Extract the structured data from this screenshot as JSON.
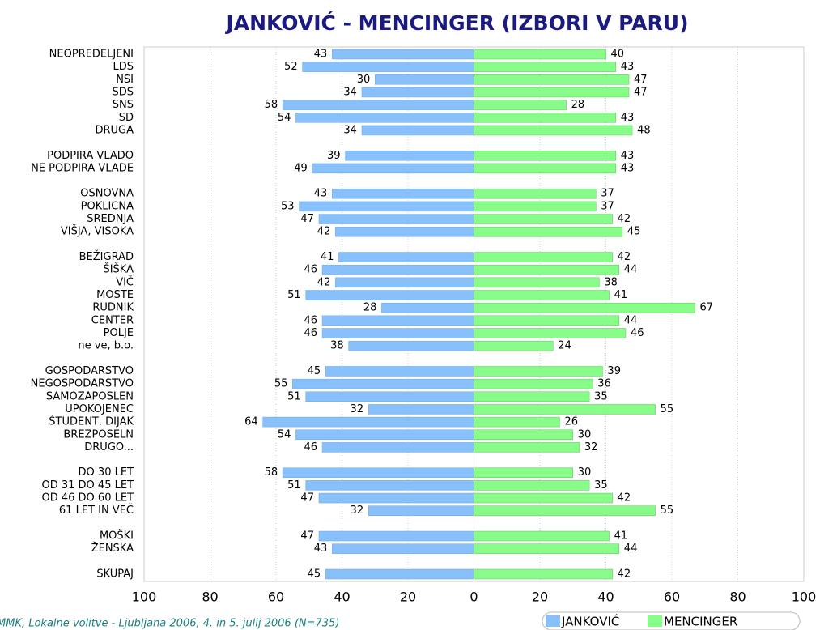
{
  "chart_data": {
    "type": "butterfly-bar",
    "title": "JANKOVIĆ - MENCINGER (IZBORI V PARU)",
    "source": "MMK, Lokalne volitve - Ljubljana 2006, 4. in 5. julij 2006 (N=735)",
    "categories": [
      "NEOPREDELJENI",
      "LDS",
      "NSI",
      "SDS",
      "SNS",
      "SD",
      "DRUGA",
      null,
      "PODPIRA VLADO",
      "NE PODPIRA VLADE",
      null,
      "OSNOVNA",
      "POKLICNA",
      "SREDNJA",
      "VIŠJA, VISOKA",
      null,
      "BEŽIGRAD",
      "ŠIŠKA",
      "VIČ",
      "MOSTE",
      "RUDNIK",
      "CENTER",
      "POLJE",
      "ne ve, b.o.",
      null,
      "GOSPODARSTVO",
      "NEGOSPODARSTVO",
      "SAMOZAPOSLEN",
      "UPOKOJENEC",
      "ŠTUDENT, DIJAK",
      "BREZPOSELN",
      "DRUGO...",
      null,
      "DO 30 LET",
      "OD 31 DO 45 LET",
      "OD 46 DO 60 LET",
      "61 LET IN VEČ",
      null,
      "MOŠKI",
      "ŽENSKA",
      null,
      "SKUPAJ"
    ],
    "series": [
      {
        "name": "JANKOVIĆ",
        "color": "#88c0fc",
        "values": [
          43,
          52,
          30,
          34,
          58,
          54,
          34,
          null,
          39,
          49,
          null,
          43,
          53,
          47,
          42,
          null,
          41,
          46,
          42,
          51,
          28,
          46,
          46,
          38,
          null,
          45,
          55,
          51,
          32,
          64,
          54,
          46,
          null,
          58,
          51,
          47,
          32,
          null,
          47,
          43,
          null,
          45
        ]
      },
      {
        "name": "MENCINGER",
        "color": "#88fc88",
        "values": [
          40,
          43,
          47,
          47,
          28,
          43,
          48,
          null,
          43,
          43,
          null,
          37,
          37,
          42,
          45,
          null,
          42,
          44,
          38,
          41,
          67,
          44,
          46,
          24,
          null,
          39,
          36,
          35,
          55,
          26,
          30,
          32,
          null,
          30,
          35,
          42,
          55,
          null,
          41,
          44,
          null,
          42
        ]
      }
    ],
    "xlim": [
      -100,
      100
    ],
    "xticks": [
      {
        "value": -100,
        "label": "100"
      },
      {
        "value": -80,
        "label": "80"
      },
      {
        "value": -60,
        "label": "60"
      },
      {
        "value": -40,
        "label": "40"
      },
      {
        "value": -20,
        "label": "20"
      },
      0,
      20,
      40,
      60,
      80,
      100
    ],
    "grid": true
  }
}
